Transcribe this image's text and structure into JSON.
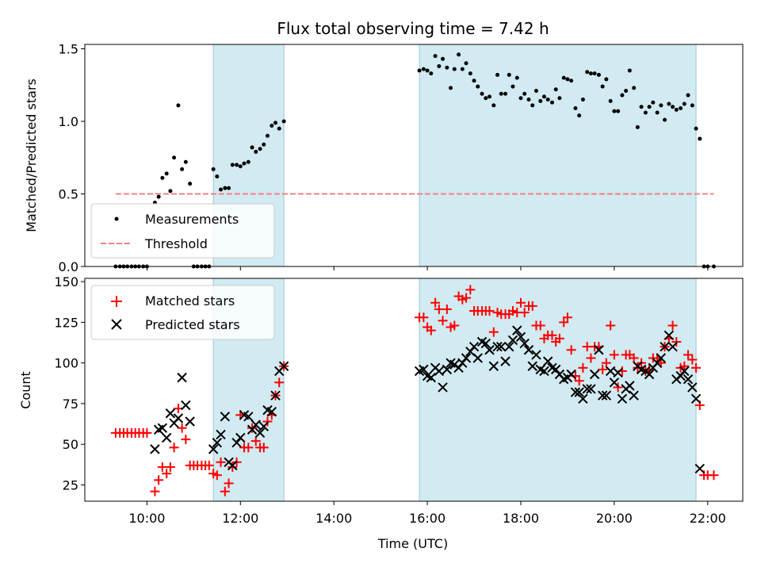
{
  "title": "Flux total observing time = 7.42 h",
  "colors": {
    "shade": "#add8e6",
    "threshold": "#f08080",
    "matched": "#ff0000",
    "predicted": "#000000",
    "measurement": "#000000"
  },
  "chart_data": [
    {
      "type": "scatter",
      "ylabel": "Matched/Predicted stars",
      "ylim": [
        0,
        1.53
      ],
      "yticks": [
        0.0,
        0.5,
        1.0,
        1.5
      ],
      "ytick_labels": [
        "0.0",
        "0.5",
        "1.0",
        "1.5"
      ],
      "legend_position": "lower-left",
      "shaded_intervals": [
        [
          11.42,
          12.93
        ],
        [
          15.83,
          21.75
        ]
      ],
      "threshold": {
        "name": "Threshold",
        "y": 0.5,
        "x_range": [
          9.33,
          22.13
        ]
      },
      "series": [
        {
          "name": "Measurements",
          "marker": "dot",
          "x": [
            9.33,
            9.42,
            9.5,
            9.58,
            9.67,
            9.75,
            9.83,
            9.92,
            10.0,
            10.17,
            10.25,
            10.33,
            10.42,
            10.5,
            10.58,
            10.67,
            10.75,
            10.83,
            10.92,
            11.0,
            11.08,
            11.17,
            11.25,
            11.33,
            11.42,
            11.5,
            11.58,
            11.67,
            11.75,
            11.83,
            11.92,
            12.0,
            12.08,
            12.17,
            12.25,
            12.33,
            12.42,
            12.5,
            12.58,
            12.67,
            12.75,
            12.83,
            12.93,
            15.83,
            15.92,
            16.0,
            16.08,
            16.17,
            16.25,
            16.33,
            16.42,
            16.5,
            16.58,
            16.67,
            16.75,
            16.83,
            16.92,
            17.0,
            17.08,
            17.17,
            17.25,
            17.33,
            17.42,
            17.5,
            17.58,
            17.67,
            17.75,
            17.83,
            17.92,
            18.0,
            18.08,
            18.17,
            18.25,
            18.33,
            18.42,
            18.5,
            18.58,
            18.67,
            18.75,
            18.83,
            18.92,
            19.0,
            19.08,
            19.17,
            19.25,
            19.33,
            19.42,
            19.5,
            19.58,
            19.67,
            19.75,
            19.83,
            19.92,
            20.0,
            20.08,
            20.17,
            20.25,
            20.33,
            20.42,
            20.5,
            20.58,
            20.67,
            20.75,
            20.83,
            20.92,
            21.0,
            21.08,
            21.17,
            21.25,
            21.33,
            21.42,
            21.5,
            21.58,
            21.67,
            21.75,
            21.83,
            21.92,
            22.0,
            22.13
          ],
          "y": [
            0,
            0,
            0,
            0,
            0,
            0,
            0,
            0,
            0,
            0.44,
            0.48,
            0.61,
            0.64,
            0.52,
            0.75,
            1.11,
            0.67,
            0.72,
            0.57,
            0,
            0,
            0,
            0,
            0,
            0.67,
            0.62,
            0.53,
            0.54,
            0.54,
            0.7,
            0.7,
            0.69,
            0.71,
            0.72,
            0.82,
            0.79,
            0.81,
            0.84,
            0.9,
            0.97,
            0.99,
            0.95,
            1.0,
            1.35,
            1.36,
            1.35,
            1.33,
            1.45,
            1.38,
            1.43,
            1.37,
            1.23,
            1.36,
            1.46,
            1.36,
            1.4,
            1.33,
            1.28,
            1.24,
            1.19,
            1.16,
            1.17,
            1.11,
            1.32,
            1.19,
            1.19,
            1.32,
            1.24,
            1.3,
            1.16,
            1.19,
            1.15,
            1.11,
            1.21,
            1.14,
            1.17,
            1.15,
            1.13,
            1.22,
            1.16,
            1.3,
            1.29,
            1.28,
            1.09,
            1.04,
            1.15,
            1.34,
            1.33,
            1.33,
            1.32,
            1.24,
            1.29,
            1.14,
            1.07,
            1.07,
            1.18,
            1.21,
            1.35,
            1.23,
            0.96,
            1.1,
            1.06,
            1.1,
            1.13,
            1.06,
            1.11,
            1.01,
            1.12,
            1.1,
            1.08,
            1.09,
            1.12,
            1.18,
            1.11,
            0.95,
            0.88,
            0,
            0,
            0
          ]
        }
      ]
    },
    {
      "type": "scatter",
      "ylabel": "Count",
      "xlabel": "Time (UTC)",
      "xlim": [
        8.67,
        22.75
      ],
      "xticks": [
        10,
        12,
        14,
        16,
        18,
        20,
        22
      ],
      "xtick_labels": [
        "10:00",
        "12:00",
        "14:00",
        "16:00",
        "18:00",
        "20:00",
        "22:00"
      ],
      "ylim": [
        15,
        152
      ],
      "yticks": [
        25,
        50,
        75,
        100,
        125,
        150
      ],
      "ytick_labels": [
        "25",
        "50",
        "75",
        "100",
        "125",
        "150"
      ],
      "legend_position": "upper-left",
      "shaded_intervals": [
        [
          11.42,
          12.93
        ],
        [
          15.83,
          21.75
        ]
      ],
      "series": [
        {
          "name": "Matched stars",
          "marker": "plus",
          "x": [
            9.33,
            9.42,
            9.5,
            9.58,
            9.67,
            9.75,
            9.83,
            9.92,
            10.0,
            10.17,
            10.25,
            10.33,
            10.42,
            10.5,
            10.58,
            10.67,
            10.75,
            10.83,
            10.92,
            11.0,
            11.08,
            11.17,
            11.25,
            11.33,
            11.42,
            11.5,
            11.58,
            11.67,
            11.75,
            11.83,
            11.92,
            12.0,
            12.08,
            12.17,
            12.25,
            12.33,
            12.42,
            12.5,
            12.58,
            12.67,
            12.75,
            12.83,
            12.93,
            15.83,
            15.92,
            16.0,
            16.08,
            16.17,
            16.25,
            16.33,
            16.42,
            16.5,
            16.58,
            16.67,
            16.75,
            16.83,
            16.92,
            17.0,
            17.08,
            17.17,
            17.25,
            17.33,
            17.42,
            17.5,
            17.58,
            17.67,
            17.75,
            17.83,
            17.92,
            18.0,
            18.08,
            18.17,
            18.25,
            18.33,
            18.42,
            18.5,
            18.58,
            18.67,
            18.75,
            18.83,
            18.92,
            19.0,
            19.08,
            19.17,
            19.25,
            19.33,
            19.42,
            19.5,
            19.58,
            19.67,
            19.75,
            19.83,
            19.92,
            20.0,
            20.08,
            20.17,
            20.25,
            20.33,
            20.42,
            20.5,
            20.58,
            20.67,
            20.75,
            20.83,
            20.92,
            21.0,
            21.08,
            21.17,
            21.25,
            21.33,
            21.42,
            21.5,
            21.58,
            21.67,
            21.75,
            21.83,
            21.92,
            22.0,
            22.13
          ],
          "y": [
            57,
            57,
            57,
            57,
            57,
            57,
            57,
            57,
            57,
            21,
            28,
            36,
            32,
            36,
            48,
            72,
            60,
            53,
            37,
            37,
            37,
            37,
            37,
            37,
            32,
            31,
            39,
            21,
            26,
            36,
            39,
            68,
            48,
            48,
            60,
            52,
            48,
            48,
            64,
            68,
            80,
            88,
            98,
            128,
            128,
            122,
            120,
            137,
            133,
            126,
            133,
            122,
            123,
            141,
            139,
            140,
            145,
            132,
            132,
            132,
            132,
            132,
            119,
            131,
            130,
            130,
            130,
            132,
            131,
            137,
            131,
            135,
            135,
            123,
            123,
            115,
            117,
            117,
            113,
            115,
            125,
            128,
            108,
            92,
            89,
            97,
            110,
            103,
            110,
            110,
            96,
            100,
            123,
            105,
            85,
            95,
            105,
            105,
            103,
            97,
            100,
            95,
            96,
            103,
            103,
            100,
            110,
            115,
            123,
            113,
            97,
            98,
            105,
            102,
            97,
            74,
            31,
            31,
            31
          ]
        },
        {
          "name": "Predicted stars",
          "marker": "x",
          "x": [
            10.17,
            10.25,
            10.33,
            10.42,
            10.5,
            10.58,
            10.67,
            10.75,
            10.83,
            10.92,
            11.42,
            11.5,
            11.58,
            11.67,
            11.75,
            11.83,
            11.92,
            12.0,
            12.08,
            12.17,
            12.25,
            12.33,
            12.42,
            12.5,
            12.58,
            12.67,
            12.75,
            12.83,
            12.93,
            15.83,
            15.92,
            16.0,
            16.08,
            16.17,
            16.25,
            16.33,
            16.42,
            16.5,
            16.58,
            16.67,
            16.75,
            16.83,
            16.92,
            17.0,
            17.08,
            17.17,
            17.25,
            17.33,
            17.42,
            17.5,
            17.58,
            17.67,
            17.75,
            17.83,
            17.92,
            18.0,
            18.08,
            18.17,
            18.25,
            18.33,
            18.42,
            18.5,
            18.58,
            18.67,
            18.75,
            18.83,
            18.92,
            19.0,
            19.08,
            19.17,
            19.25,
            19.33,
            19.42,
            19.5,
            19.58,
            19.67,
            19.75,
            19.83,
            19.92,
            20.0,
            20.08,
            20.17,
            20.25,
            20.33,
            20.42,
            20.5,
            20.58,
            20.67,
            20.75,
            20.83,
            20.92,
            21.0,
            21.08,
            21.17,
            21.25,
            21.33,
            21.42,
            21.5,
            21.58,
            21.67,
            21.75,
            21.83
          ],
          "y": [
            47,
            59,
            60,
            54,
            69,
            63,
            66,
            91,
            74,
            64,
            47,
            51,
            56,
            67,
            39,
            37,
            51,
            54,
            68,
            67,
            59,
            62,
            57,
            61,
            71,
            70,
            80,
            95,
            98,
            95,
            96,
            92,
            91,
            97,
            95,
            85,
            96,
            100,
            99,
            97,
            100,
            103,
            107,
            110,
            103,
            113,
            112,
            108,
            98,
            110,
            110,
            101,
            110,
            114,
            120,
            116,
            112,
            108,
            98,
            105,
            96,
            95,
            101,
            97,
            96,
            93,
            90,
            91,
            93,
            82,
            82,
            78,
            84,
            84,
            93,
            108,
            80,
            80,
            95,
            88,
            94,
            78,
            84,
            86,
            80,
            98,
            96,
            95,
            93,
            97,
            100,
            103,
            110,
            117,
            110,
            90,
            92,
            95,
            90,
            85,
            78,
            35
          ]
        }
      ]
    }
  ]
}
